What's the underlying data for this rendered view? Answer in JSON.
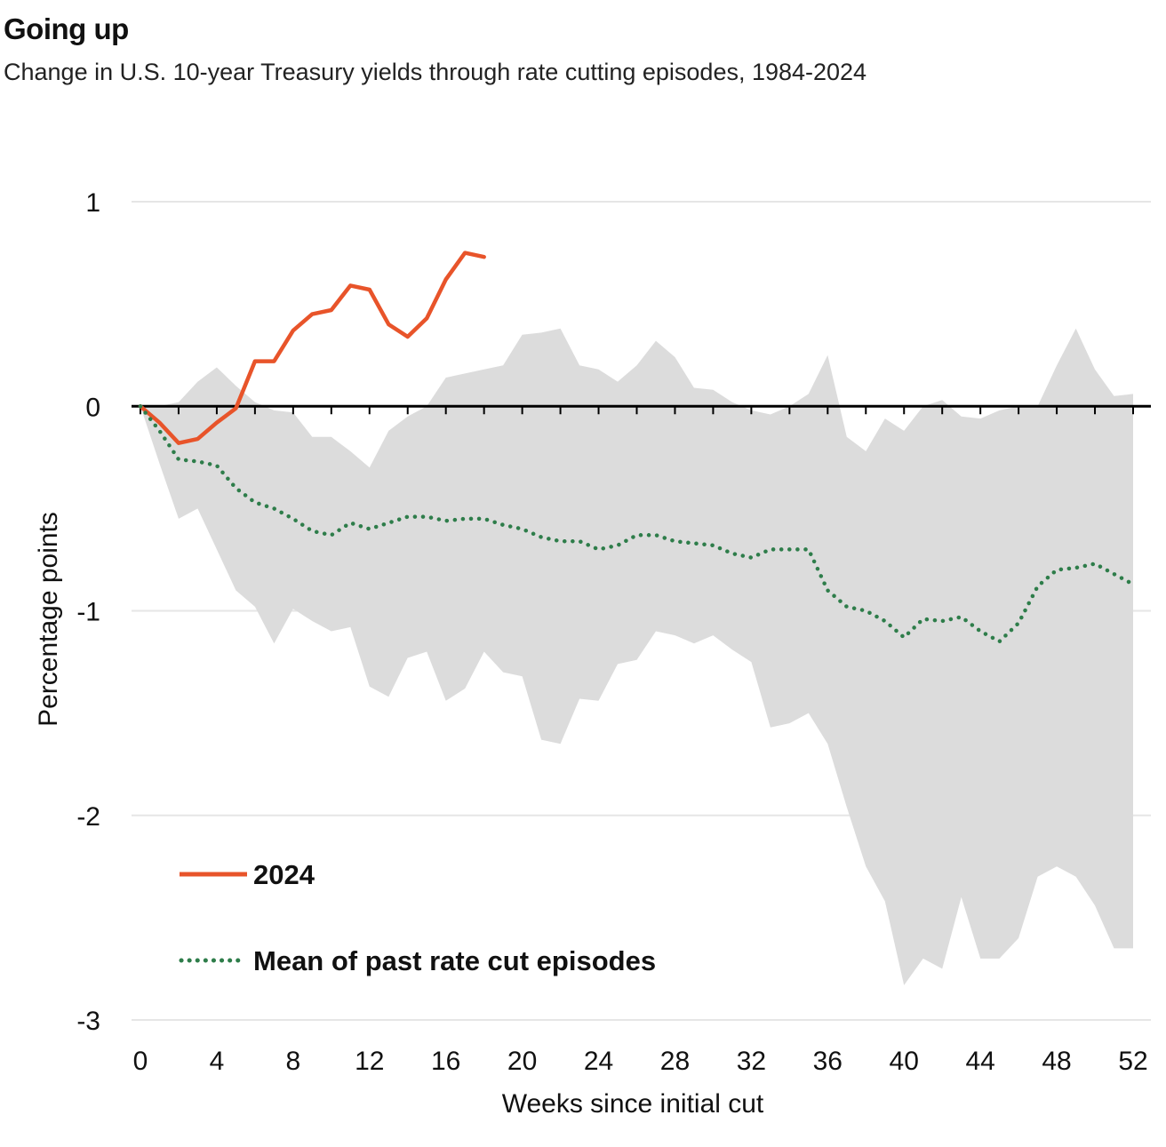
{
  "header": {
    "title": "Going up",
    "subtitle": "Change in U.S. 10-year Treasury yields through rate cutting episodes, 1984-2024"
  },
  "chart_data": {
    "type": "line",
    "xlabel": "Weeks since initial cut",
    "ylabel": "Percentage points",
    "xlim": [
      0,
      52
    ],
    "ylim": [
      -3,
      1
    ],
    "xticks": [
      0,
      4,
      8,
      12,
      16,
      20,
      24,
      28,
      32,
      36,
      40,
      44,
      48,
      52
    ],
    "yticks": [
      1,
      0,
      -1,
      -2,
      -3
    ],
    "grid": "horizontal",
    "legend_position": "bottom-left",
    "colors": {
      "line_2024": "#e8542a",
      "mean": "#2e7d4a",
      "range": "#dcdcdc",
      "zero_line": "#000000",
      "grid": "#e6e6e6"
    },
    "series": [
      {
        "name": "2024",
        "style": "solid",
        "x": [
          0,
          1,
          2,
          3,
          4,
          5,
          6,
          7,
          8,
          9,
          10,
          11,
          12,
          13,
          14,
          15,
          16,
          17,
          18
        ],
        "y": [
          0,
          -0.08,
          -0.18,
          -0.16,
          -0.08,
          -0.01,
          0.22,
          0.22,
          0.37,
          0.45,
          0.47,
          0.59,
          0.57,
          0.4,
          0.34,
          0.43,
          0.62,
          0.75,
          0.73
        ]
      },
      {
        "name": "Mean of past rate cut episodes",
        "style": "dotted",
        "x": [
          0,
          1,
          2,
          3,
          4,
          5,
          6,
          7,
          8,
          9,
          10,
          11,
          12,
          13,
          14,
          15,
          16,
          17,
          18,
          19,
          20,
          21,
          22,
          23,
          24,
          25,
          26,
          27,
          28,
          29,
          30,
          31,
          32,
          33,
          34,
          35,
          36,
          37,
          38,
          39,
          40,
          41,
          42,
          43,
          44,
          45,
          46,
          47,
          48,
          49,
          50,
          51,
          52
        ],
        "y": [
          0,
          -0.12,
          -0.26,
          -0.27,
          -0.29,
          -0.4,
          -0.47,
          -0.5,
          -0.55,
          -0.61,
          -0.63,
          -0.57,
          -0.6,
          -0.57,
          -0.54,
          -0.54,
          -0.56,
          -0.55,
          -0.55,
          -0.58,
          -0.6,
          -0.64,
          -0.66,
          -0.66,
          -0.7,
          -0.68,
          -0.63,
          -0.63,
          -0.66,
          -0.67,
          -0.68,
          -0.72,
          -0.74,
          -0.7,
          -0.7,
          -0.7,
          -0.9,
          -0.98,
          -1.0,
          -1.05,
          -1.13,
          -1.04,
          -1.05,
          -1.03,
          -1.1,
          -1.15,
          -1.06,
          -0.88,
          -0.8,
          -0.79,
          -0.77,
          -0.82,
          -0.87
        ]
      }
    ],
    "range_band": {
      "x": [
        0,
        1,
        2,
        3,
        4,
        5,
        6,
        7,
        8,
        9,
        10,
        11,
        12,
        13,
        14,
        15,
        16,
        17,
        18,
        19,
        20,
        21,
        22,
        23,
        24,
        25,
        26,
        27,
        28,
        29,
        30,
        31,
        32,
        33,
        34,
        35,
        36,
        37,
        38,
        39,
        40,
        41,
        42,
        43,
        44,
        45,
        46,
        47,
        48,
        49,
        50,
        51,
        52
      ],
      "upper": [
        0,
        0,
        0.02,
        0.12,
        0.19,
        0.1,
        0.02,
        -0.02,
        -0.03,
        -0.15,
        -0.15,
        -0.22,
        -0.3,
        -0.12,
        -0.05,
        0,
        0.14,
        0.16,
        0.18,
        0.2,
        0.35,
        0.36,
        0.38,
        0.2,
        0.18,
        0.12,
        0.2,
        0.32,
        0.24,
        0.09,
        0.08,
        0.02,
        -0.02,
        -0.04,
        0.0,
        0.06,
        0.25,
        -0.15,
        -0.22,
        -0.06,
        -0.12,
        0.0,
        0.03,
        -0.05,
        -0.06,
        -0.02,
        0.0,
        0.0,
        0.2,
        0.38,
        0.18,
        0.05,
        0.06
      ],
      "lower": [
        0,
        -0.28,
        -0.55,
        -0.5,
        -0.7,
        -0.9,
        -0.98,
        -1.16,
        -0.99,
        -1.05,
        -1.1,
        -1.08,
        -1.37,
        -1.42,
        -1.23,
        -1.2,
        -1.44,
        -1.38,
        -1.2,
        -1.3,
        -1.32,
        -1.63,
        -1.65,
        -1.43,
        -1.44,
        -1.26,
        -1.24,
        -1.1,
        -1.12,
        -1.16,
        -1.12,
        -1.19,
        -1.25,
        -1.57,
        -1.55,
        -1.5,
        -1.65,
        -1.96,
        -2.25,
        -2.42,
        -2.83,
        -2.7,
        -2.75,
        -2.4,
        -2.7,
        -2.7,
        -2.6,
        -2.3,
        -2.25,
        -2.3,
        -2.44,
        -2.65,
        -2.65
      ]
    }
  }
}
